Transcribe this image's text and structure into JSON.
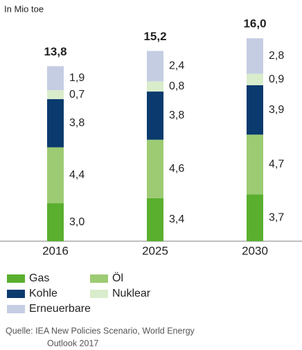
{
  "chart_data": {
    "type": "stacked_bar",
    "unit_label": "In Mio toe",
    "categories": [
      "2016",
      "2025",
      "2030"
    ],
    "series": [
      {
        "name": "Gas",
        "color": "#5aaf2e",
        "values": [
          3.0,
          3.4,
          3.7
        ],
        "value_labels": [
          "3,0",
          "3,4",
          "3,7"
        ]
      },
      {
        "name": "Öl",
        "color": "#9dcb73",
        "values": [
          4.4,
          4.6,
          4.7
        ],
        "value_labels": [
          "4,4",
          "4,6",
          "4,7"
        ]
      },
      {
        "name": "Kohle",
        "color": "#0b3a6e",
        "values": [
          3.8,
          3.8,
          3.9
        ],
        "value_labels": [
          "3,8",
          "3,8",
          "3,9"
        ]
      },
      {
        "name": "Nuklear",
        "color": "#d9eccb",
        "values": [
          0.7,
          0.8,
          0.9
        ],
        "value_labels": [
          "0,7",
          "0,8",
          "0,9"
        ]
      },
      {
        "name": "Erneuerbare",
        "color": "#c5cde3",
        "values": [
          1.9,
          2.4,
          2.8
        ],
        "value_labels": [
          "1,9",
          "2,4",
          "2,8"
        ]
      }
    ],
    "totals": [
      13.8,
      15.2,
      16.0
    ],
    "total_labels": [
      "13,8",
      "15,2",
      "16,0"
    ],
    "source": [
      "Quelle: IEA New Policies Scenario, World Energy",
      "Outlook 2017"
    ]
  }
}
